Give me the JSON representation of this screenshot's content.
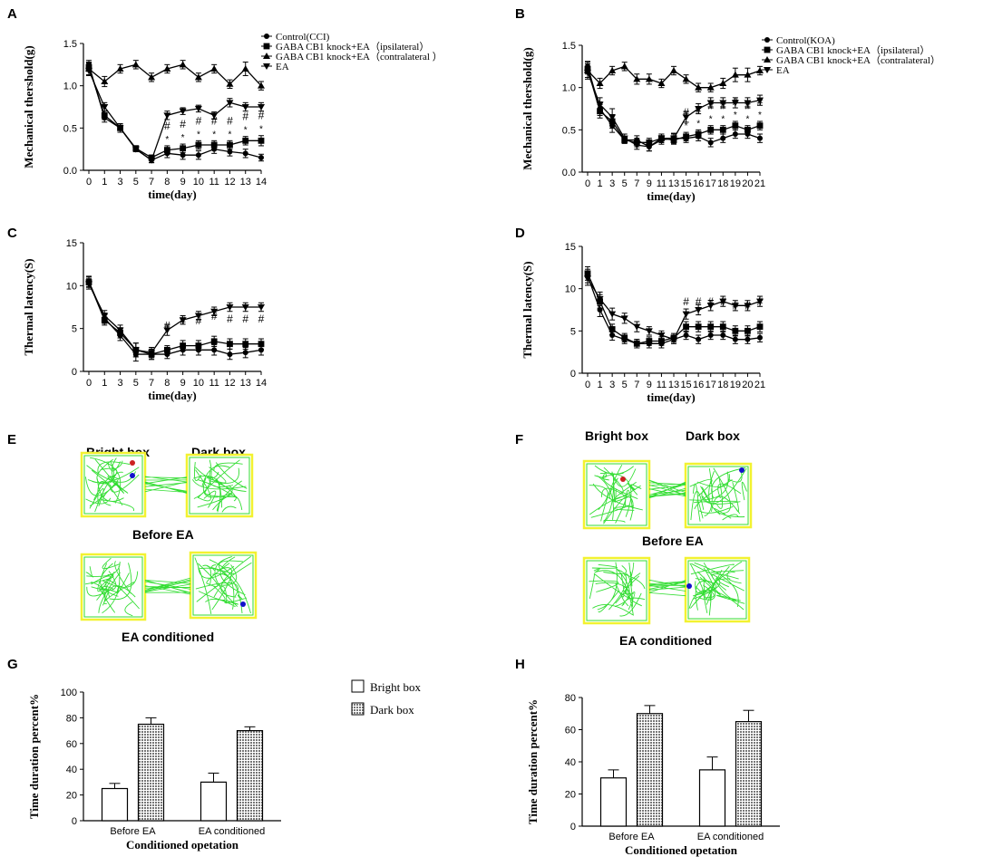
{
  "panel_letters": [
    "A",
    "B",
    "C",
    "D",
    "E",
    "F",
    "G",
    "H"
  ],
  "chart_data": [
    {
      "id": "A",
      "type": "line",
      "ylabel": "Mechanical thershold(g)",
      "xlabel": "time(day)",
      "ylim": [
        0,
        1.5
      ],
      "yticks": [
        "0.0",
        "0.5",
        "1.0",
        "1.5"
      ],
      "categories": [
        "0",
        "1",
        "3",
        "5",
        "7",
        "8",
        "9",
        "10",
        "11",
        "12",
        "13",
        "14"
      ],
      "legend": [
        "Control(CCI)",
        "GABA CB1 knock+EA（ipsilateral）",
        "GABA CB1 knock+EA（contralateral   ）",
        "EA"
      ],
      "series": [
        {
          "name": "Control(CCI)",
          "marker": "circle",
          "values": [
            1.25,
            0.62,
            0.5,
            0.25,
            0.12,
            0.2,
            0.18,
            0.18,
            0.25,
            0.22,
            0.2,
            0.15
          ],
          "err": [
            0.05,
            0.05,
            0.05,
            0.03,
            0.03,
            0.05,
            0.05,
            0.05,
            0.05,
            0.05,
            0.05,
            0.04
          ]
        },
        {
          "name": "GABA CB1 knock+EA（ipsilateral）",
          "marker": "square",
          "values": [
            1.22,
            0.65,
            0.5,
            0.26,
            0.15,
            0.24,
            0.26,
            0.3,
            0.3,
            0.3,
            0.35,
            0.35
          ],
          "err": [
            0.05,
            0.05,
            0.05,
            0.03,
            0.03,
            0.05,
            0.05,
            0.05,
            0.05,
            0.05,
            0.05,
            0.06
          ]
        },
        {
          "name": "GABA CB1 knock+EA（contralateral   ）",
          "marker": "triangle",
          "values": [
            1.2,
            1.05,
            1.2,
            1.25,
            1.1,
            1.2,
            1.25,
            1.1,
            1.2,
            1.02,
            1.2,
            1.0
          ],
          "err": [
            0.08,
            0.06,
            0.05,
            0.05,
            0.05,
            0.05,
            0.05,
            0.05,
            0.05,
            0.05,
            0.08,
            0.05
          ]
        },
        {
          "name": "EA",
          "marker": "triangle-down",
          "values": [
            1.18,
            0.75,
            0.5,
            0.25,
            0.12,
            0.65,
            0.7,
            0.73,
            0.65,
            0.8,
            0.75,
            0.75
          ],
          "err": [
            0.05,
            0.05,
            0.05,
            0.03,
            0.03,
            0.05,
            0.04,
            0.04,
            0.04,
            0.05,
            0.05,
            0.05
          ]
        }
      ],
      "annotations": {
        "hash": [
          5,
          6,
          7,
          8,
          9,
          10,
          11
        ],
        "star": [
          5,
          6,
          7,
          8,
          9,
          10,
          11
        ],
        "hash_text": "#",
        "star_text": "*"
      }
    },
    {
      "id": "B",
      "type": "line",
      "ylabel": "Mechanical thershold(g)",
      "xlabel": "time(day)",
      "ylim": [
        0,
        1.5
      ],
      "yticks": [
        "0.0",
        "0.5",
        "1.0",
        "1.5"
      ],
      "categories": [
        "0",
        "1",
        "3",
        "5",
        "7",
        "9",
        "11",
        "13",
        "15",
        "16",
        "17",
        "18",
        "19",
        "20",
        "21"
      ],
      "legend": [
        "Control(KOA)",
        "GABA CB1 knock+EA（ipsilateral）",
        "GABA CB1 knock+EA（contralateral）",
        "EA"
      ],
      "series": [
        {
          "name": "Control(KOA)",
          "marker": "circle",
          "values": [
            1.25,
            0.75,
            0.55,
            0.38,
            0.38,
            0.3,
            0.38,
            0.4,
            0.4,
            0.42,
            0.35,
            0.4,
            0.45,
            0.45,
            0.4
          ],
          "err": [
            0.06,
            0.08,
            0.08,
            0.04,
            0.05,
            0.05,
            0.05,
            0.05,
            0.05,
            0.05,
            0.05,
            0.05,
            0.05,
            0.05,
            0.05
          ]
        },
        {
          "name": "GABA CB1 knock+EA（ipsilateral）",
          "marker": "square",
          "values": [
            1.22,
            0.72,
            0.6,
            0.38,
            0.35,
            0.35,
            0.4,
            0.38,
            0.42,
            0.45,
            0.5,
            0.5,
            0.55,
            0.5,
            0.55
          ],
          "err": [
            0.06,
            0.08,
            0.08,
            0.04,
            0.05,
            0.05,
            0.05,
            0.05,
            0.05,
            0.05,
            0.05,
            0.05,
            0.05,
            0.05,
            0.05
          ]
        },
        {
          "name": "GABA CB1 knock+EA（contralateral）",
          "marker": "triangle",
          "values": [
            1.2,
            1.05,
            1.2,
            1.25,
            1.1,
            1.1,
            1.05,
            1.2,
            1.1,
            1.0,
            1.0,
            1.05,
            1.15,
            1.15,
            1.2
          ],
          "err": [
            0.1,
            0.06,
            0.05,
            0.05,
            0.06,
            0.06,
            0.05,
            0.05,
            0.05,
            0.05,
            0.05,
            0.06,
            0.08,
            0.08,
            0.05
          ]
        },
        {
          "name": "EA",
          "marker": "triangle-down",
          "values": [
            1.18,
            0.8,
            0.65,
            0.4,
            0.32,
            0.3,
            0.4,
            0.4,
            0.65,
            0.75,
            0.82,
            0.82,
            0.82,
            0.82,
            0.85
          ],
          "err": [
            0.06,
            0.08,
            0.1,
            0.05,
            0.05,
            0.05,
            0.05,
            0.06,
            0.06,
            0.06,
            0.06,
            0.06,
            0.06,
            0.06,
            0.06
          ]
        }
      ],
      "annotations": {
        "hash": [
          8,
          9,
          10,
          11,
          12,
          13,
          14
        ],
        "star": [
          8,
          9,
          10,
          11,
          12,
          13,
          14
        ],
        "hash_text": "#",
        "star_text": "*"
      }
    },
    {
      "id": "C",
      "type": "line",
      "ylabel": "Thermal latency(S)",
      "xlabel": "time(day)",
      "ylim": [
        0,
        15
      ],
      "yticks": [
        "0",
        "5",
        "10",
        "15"
      ],
      "categories": [
        "0",
        "1",
        "3",
        "5",
        "7",
        "8",
        "9",
        "10",
        "11",
        "12",
        "13",
        "14"
      ],
      "series": [
        {
          "name": "Control(CCI)",
          "marker": "circle",
          "values": [
            10.5,
            6.2,
            4.2,
            2.0,
            2.0,
            2.0,
            2.5,
            2.5,
            2.5,
            2.0,
            2.2,
            2.5
          ],
          "err": [
            0.6,
            0.6,
            0.6,
            0.8,
            0.6,
            0.5,
            0.6,
            0.6,
            0.6,
            0.6,
            0.6,
            0.6
          ]
        },
        {
          "name": "GABA CB1 knock+EA（ipsilateral）",
          "marker": "square",
          "values": [
            10.4,
            6.0,
            4.5,
            2.5,
            2.0,
            2.5,
            3.0,
            3.0,
            3.5,
            3.2,
            3.2,
            3.2
          ],
          "err": [
            0.6,
            0.6,
            0.6,
            0.8,
            0.6,
            0.5,
            0.6,
            0.6,
            0.6,
            0.6,
            0.6,
            0.6
          ]
        },
        {
          "name": "EA",
          "marker": "triangle-down",
          "values": [
            10.2,
            6.5,
            4.8,
            2.5,
            2.2,
            4.8,
            6.0,
            6.5,
            7.0,
            7.5,
            7.5,
            7.5
          ],
          "err": [
            0.6,
            0.6,
            0.6,
            0.8,
            0.6,
            0.6,
            0.5,
            0.5,
            0.5,
            0.5,
            0.5,
            0.5
          ]
        }
      ],
      "annotations": {
        "hash": [
          5,
          6,
          7,
          8,
          9,
          10,
          11
        ],
        "hash_text": "#"
      }
    },
    {
      "id": "D",
      "type": "line",
      "ylabel": "Thermal latency(S)",
      "xlabel": "time(day)",
      "ylim": [
        0,
        15
      ],
      "yticks": [
        "0",
        "5",
        "10",
        "15"
      ],
      "categories": [
        "0",
        "1",
        "3",
        "5",
        "7",
        "9",
        "11",
        "13",
        "15",
        "16",
        "17",
        "18",
        "19",
        "20",
        "21"
      ],
      "series": [
        {
          "name": "Control(KOA)",
          "marker": "circle",
          "values": [
            11.5,
            7.5,
            4.5,
            4.0,
            3.5,
            3.5,
            3.5,
            4.0,
            4.5,
            4.0,
            4.5,
            4.5,
            4.0,
            4.0,
            4.2
          ],
          "err": [
            0.8,
            0.8,
            0.6,
            0.5,
            0.5,
            0.5,
            0.5,
            0.5,
            0.5,
            0.5,
            0.5,
            0.5,
            0.5,
            0.5,
            0.5
          ]
        },
        {
          "name": "GABA CB1 knock+EA（ipsilateral）",
          "marker": "square",
          "values": [
            11.8,
            8.5,
            5.2,
            4.2,
            3.5,
            3.8,
            3.8,
            4.2,
            5.5,
            5.5,
            5.5,
            5.5,
            5.0,
            5.0,
            5.5
          ],
          "err": [
            0.8,
            0.8,
            0.6,
            0.5,
            0.5,
            0.5,
            0.5,
            0.5,
            0.6,
            0.6,
            0.6,
            0.6,
            0.6,
            0.6,
            0.6
          ]
        },
        {
          "name": "EA",
          "marker": "triangle-down",
          "values": [
            11.2,
            8.8,
            7.0,
            6.5,
            5.5,
            5.0,
            4.5,
            4.0,
            7.0,
            7.5,
            8.0,
            8.5,
            8.0,
            8.0,
            8.5
          ],
          "err": [
            0.8,
            0.8,
            0.7,
            0.6,
            0.6,
            0.5,
            0.5,
            0.5,
            0.6,
            0.6,
            0.6,
            0.6,
            0.6,
            0.6,
            0.6
          ]
        }
      ],
      "annotations": {
        "hash": [
          8,
          9,
          10,
          11,
          12,
          13,
          14
        ],
        "hash_text": "#"
      }
    },
    {
      "id": "G",
      "type": "bar",
      "ylabel": "Time duration percent%",
      "xlabel": "Conditioned opetation",
      "ylim": [
        0,
        100
      ],
      "yticks": [
        "0",
        "20",
        "40",
        "60",
        "80",
        "100"
      ],
      "categories": [
        "Before EA",
        "EA conditioned"
      ],
      "legend": [
        "Bright box",
        "Dark box"
      ],
      "series": [
        {
          "name": "Bright box",
          "values": [
            25,
            30
          ],
          "err": [
            4,
            7
          ]
        },
        {
          "name": "Dark box",
          "values": [
            75,
            70
          ],
          "err": [
            5,
            3
          ]
        }
      ]
    },
    {
      "id": "H",
      "type": "bar",
      "ylabel": "Time duration percent%",
      "xlabel": "Conditioned opetation",
      "ylim": [
        0,
        80
      ],
      "yticks": [
        "0",
        "20",
        "40",
        "60",
        "80"
      ],
      "categories": [
        "Before EA",
        "EA conditioned"
      ],
      "series": [
        {
          "name": "Bright box",
          "values": [
            30,
            35
          ],
          "err": [
            5,
            8
          ]
        },
        {
          "name": "Dark box",
          "values": [
            70,
            65
          ],
          "err": [
            5,
            7
          ]
        }
      ]
    }
  ],
  "track_panels": [
    {
      "id": "E",
      "bright_label": "Bright box",
      "dark_label": "Dark box",
      "before_label": "Before EA",
      "after_label": "EA conditioned"
    },
    {
      "id": "F",
      "bright_label": "Bright box",
      "dark_label": "Dark box",
      "before_label": "Before EA",
      "after_label": "EA conditioned"
    }
  ],
  "colors": {
    "track": "#33dd33",
    "box": "#f2f230",
    "start_dot": "#cc2222",
    "end_dot": "#1111cc",
    "axis": "#000000",
    "bar_dark": "#8a8a8a"
  }
}
